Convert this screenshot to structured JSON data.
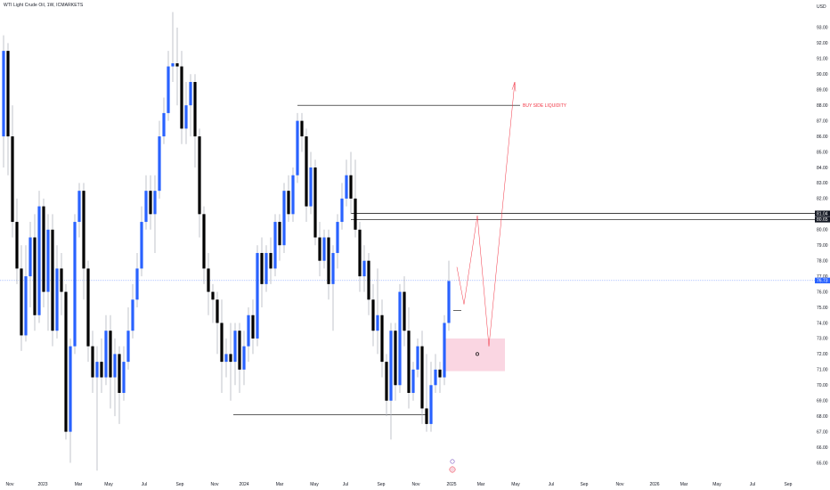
{
  "header": {
    "symbol_title": "WTI Light Crude Oil, 1W, ICMARKETS",
    "currency": "USD"
  },
  "colors": {
    "up_candle": "#2962ff",
    "down_candle": "#000000",
    "wick": "#b2b5be",
    "annotation_red": "#f23645",
    "zone_fill": "#f8c8d8",
    "price_line": "#2962ff",
    "level_label_bg": "#131722"
  },
  "chart_data": {
    "type": "candlestick",
    "instrument": "WTI Light Crude Oil",
    "timeframe": "1W",
    "y_axis": {
      "ticks": [
        "65.00",
        "66.00",
        "67.00",
        "68.00",
        "69.00",
        "70.00",
        "71.00",
        "72.00",
        "73.00",
        "74.00",
        "75.00",
        "76.00",
        "77.00",
        "78.00",
        "79.00",
        "80.00",
        "81.00",
        "82.00",
        "83.00",
        "84.00",
        "85.00",
        "86.00",
        "87.00",
        "88.00",
        "89.00",
        "90.00",
        "91.00",
        "92.00",
        "93.00"
      ],
      "ylim": [
        64.4,
        94.2
      ]
    },
    "x_axis": {
      "ticks": [
        "Nov",
        "2023",
        "Mar",
        "May",
        "Jul",
        "Sep",
        "Nov",
        "2024",
        "Mar",
        "May",
        "Jul",
        "Sep",
        "Nov",
        "2025",
        "Mar",
        "May",
        "Jul",
        "Sep",
        "Nov",
        "2026",
        "Mar",
        "May",
        "Jul",
        "Sep"
      ]
    },
    "current_price_label": "76.73",
    "level_labels": [
      "81.04",
      "80.65"
    ],
    "annotations": {
      "buy_side_label": "BUY SIDE LIQUIDITY"
    },
    "candles": [
      {
        "o": 86.0,
        "c": 91.5,
        "h": 92.5,
        "l": 84.0
      },
      {
        "o": 91.5,
        "c": 86.0,
        "h": 92.0,
        "l": 83.5
      },
      {
        "o": 86.0,
        "c": 80.5,
        "h": 88.0,
        "l": 79.5
      },
      {
        "o": 80.5,
        "c": 77.5,
        "h": 82.0,
        "l": 76.5
      },
      {
        "o": 77.5,
        "c": 73.2,
        "h": 79.0,
        "l": 72.2
      },
      {
        "o": 73.2,
        "c": 77.0,
        "h": 79.0,
        "l": 72.8
      },
      {
        "o": 77.0,
        "c": 79.5,
        "h": 80.5,
        "l": 75.0
      },
      {
        "o": 79.5,
        "c": 74.5,
        "h": 81.0,
        "l": 73.5
      },
      {
        "o": 74.5,
        "c": 81.5,
        "h": 82.5,
        "l": 74.0
      },
      {
        "o": 81.5,
        "c": 76.0,
        "h": 82.0,
        "l": 75.0
      },
      {
        "o": 76.0,
        "c": 80.0,
        "h": 81.0,
        "l": 73.5
      },
      {
        "o": 80.0,
        "c": 73.5,
        "h": 81.0,
        "l": 72.5
      },
      {
        "o": 73.5,
        "c": 77.5,
        "h": 79.0,
        "l": 73.0
      },
      {
        "o": 77.5,
        "c": 76.0,
        "h": 78.5,
        "l": 74.5
      },
      {
        "o": 76.0,
        "c": 67.0,
        "h": 76.5,
        "l": 66.5
      },
      {
        "o": 67.0,
        "c": 72.5,
        "h": 73.0,
        "l": 65.0
      },
      {
        "o": 72.5,
        "c": 80.5,
        "h": 81.0,
        "l": 72.0
      },
      {
        "o": 80.5,
        "c": 82.5,
        "h": 83.0,
        "l": 79.5
      },
      {
        "o": 82.5,
        "c": 77.5,
        "h": 83.0,
        "l": 75.5
      },
      {
        "o": 77.5,
        "c": 72.5,
        "h": 78.0,
        "l": 71.5
      },
      {
        "o": 72.5,
        "c": 70.5,
        "h": 73.5,
        "l": 69.5
      },
      {
        "o": 70.5,
        "c": 71.5,
        "h": 72.5,
        "l": 64.5
      },
      {
        "o": 71.5,
        "c": 70.5,
        "h": 73.0,
        "l": 69.5
      },
      {
        "o": 70.5,
        "c": 73.5,
        "h": 74.5,
        "l": 70.0
      },
      {
        "o": 73.5,
        "c": 70.5,
        "h": 74.5,
        "l": 68.5
      },
      {
        "o": 70.5,
        "c": 72.0,
        "h": 73.0,
        "l": 68.0
      },
      {
        "o": 72.0,
        "c": 69.5,
        "h": 72.5,
        "l": 67.5
      },
      {
        "o": 69.5,
        "c": 71.5,
        "h": 72.5,
        "l": 69.0
      },
      {
        "o": 71.5,
        "c": 73.5,
        "h": 75.0,
        "l": 71.0
      },
      {
        "o": 73.5,
        "c": 75.5,
        "h": 76.5,
        "l": 73.0
      },
      {
        "o": 75.5,
        "c": 77.5,
        "h": 78.5,
        "l": 75.0
      },
      {
        "o": 77.5,
        "c": 80.5,
        "h": 81.5,
        "l": 77.0
      },
      {
        "o": 80.5,
        "c": 82.5,
        "h": 83.5,
        "l": 80.0
      },
      {
        "o": 82.5,
        "c": 81.0,
        "h": 83.5,
        "l": 80.0
      },
      {
        "o": 81.0,
        "c": 82.5,
        "h": 83.5,
        "l": 78.5
      },
      {
        "o": 82.5,
        "c": 86.0,
        "h": 87.0,
        "l": 82.0
      },
      {
        "o": 86.0,
        "c": 87.5,
        "h": 88.5,
        "l": 85.5
      },
      {
        "o": 87.5,
        "c": 90.5,
        "h": 91.5,
        "l": 87.0
      },
      {
        "o": 90.5,
        "c": 90.7,
        "h": 94.0,
        "l": 89.5
      },
      {
        "o": 90.7,
        "c": 90.5,
        "h": 93.0,
        "l": 88.0
      },
      {
        "o": 90.5,
        "c": 86.5,
        "h": 91.5,
        "l": 85.5
      },
      {
        "o": 86.5,
        "c": 88.0,
        "h": 89.5,
        "l": 85.5
      },
      {
        "o": 88.0,
        "c": 89.5,
        "h": 90.0,
        "l": 86.0
      },
      {
        "o": 89.5,
        "c": 86.0,
        "h": 90.0,
        "l": 84.0
      },
      {
        "o": 86.0,
        "c": 81.0,
        "h": 86.5,
        "l": 79.5
      },
      {
        "o": 81.0,
        "c": 77.5,
        "h": 81.5,
        "l": 76.5
      },
      {
        "o": 77.5,
        "c": 76.0,
        "h": 78.5,
        "l": 74.5
      },
      {
        "o": 76.0,
        "c": 75.5,
        "h": 76.5,
        "l": 74.0
      },
      {
        "o": 75.5,
        "c": 74.0,
        "h": 76.0,
        "l": 72.0
      },
      {
        "o": 74.0,
        "c": 71.5,
        "h": 75.5,
        "l": 69.5
      },
      {
        "o": 71.5,
        "c": 72.0,
        "h": 73.0,
        "l": 70.5
      },
      {
        "o": 72.0,
        "c": 71.5,
        "h": 74.0,
        "l": 69.0
      },
      {
        "o": 71.5,
        "c": 73.5,
        "h": 74.0,
        "l": 70.0
      },
      {
        "o": 73.5,
        "c": 71.0,
        "h": 74.0,
        "l": 69.5
      },
      {
        "o": 71.0,
        "c": 72.5,
        "h": 73.5,
        "l": 70.0
      },
      {
        "o": 72.5,
        "c": 74.5,
        "h": 75.0,
        "l": 71.5
      },
      {
        "o": 74.5,
        "c": 73.0,
        "h": 75.5,
        "l": 72.0
      },
      {
        "o": 73.0,
        "c": 78.5,
        "h": 79.0,
        "l": 72.5
      },
      {
        "o": 78.5,
        "c": 76.5,
        "h": 79.5,
        "l": 75.0
      },
      {
        "o": 76.5,
        "c": 78.5,
        "h": 79.0,
        "l": 76.0
      },
      {
        "o": 78.5,
        "c": 77.5,
        "h": 79.5,
        "l": 76.5
      },
      {
        "o": 77.5,
        "c": 80.5,
        "h": 81.0,
        "l": 77.0
      },
      {
        "o": 80.5,
        "c": 79.0,
        "h": 81.0,
        "l": 78.0
      },
      {
        "o": 79.0,
        "c": 82.5,
        "h": 83.0,
        "l": 78.5
      },
      {
        "o": 82.5,
        "c": 81.0,
        "h": 83.5,
        "l": 80.5
      },
      {
        "o": 81.0,
        "c": 83.5,
        "h": 84.0,
        "l": 80.5
      },
      {
        "o": 83.5,
        "c": 87.0,
        "h": 87.5,
        "l": 83.0
      },
      {
        "o": 87.0,
        "c": 86.0,
        "h": 87.5,
        "l": 85.0
      },
      {
        "o": 86.0,
        "c": 81.5,
        "h": 86.5,
        "l": 80.5
      },
      {
        "o": 81.5,
        "c": 84.0,
        "h": 85.0,
        "l": 81.0
      },
      {
        "o": 84.0,
        "c": 79.5,
        "h": 84.5,
        "l": 79.0
      },
      {
        "o": 79.5,
        "c": 78.0,
        "h": 80.5,
        "l": 77.0
      },
      {
        "o": 78.0,
        "c": 79.5,
        "h": 80.0,
        "l": 77.5
      },
      {
        "o": 79.5,
        "c": 76.5,
        "h": 80.0,
        "l": 75.5
      },
      {
        "o": 76.5,
        "c": 78.5,
        "h": 79.0,
        "l": 73.5
      },
      {
        "o": 78.5,
        "c": 80.5,
        "h": 81.0,
        "l": 77.5
      },
      {
        "o": 80.5,
        "c": 82.0,
        "h": 83.0,
        "l": 80.0
      },
      {
        "o": 82.0,
        "c": 83.5,
        "h": 84.5,
        "l": 81.5
      },
      {
        "o": 83.5,
        "c": 82.0,
        "h": 85.0,
        "l": 81.0
      },
      {
        "o": 82.0,
        "c": 80.0,
        "h": 84.5,
        "l": 79.5
      },
      {
        "o": 80.0,
        "c": 77.0,
        "h": 80.5,
        "l": 76.0
      },
      {
        "o": 77.0,
        "c": 78.0,
        "h": 79.0,
        "l": 76.0
      },
      {
        "o": 78.0,
        "c": 75.5,
        "h": 78.5,
        "l": 74.5
      },
      {
        "o": 75.5,
        "c": 73.5,
        "h": 76.5,
        "l": 72.5
      },
      {
        "o": 73.5,
        "c": 74.5,
        "h": 77.5,
        "l": 72.0
      },
      {
        "o": 74.5,
        "c": 71.5,
        "h": 75.5,
        "l": 70.5
      },
      {
        "o": 71.5,
        "c": 69.0,
        "h": 72.0,
        "l": 68.0
      },
      {
        "o": 69.0,
        "c": 73.5,
        "h": 74.0,
        "l": 66.5
      },
      {
        "o": 73.5,
        "c": 70.0,
        "h": 74.0,
        "l": 69.0
      },
      {
        "o": 70.0,
        "c": 76.0,
        "h": 76.5,
        "l": 69.5
      },
      {
        "o": 76.0,
        "c": 73.5,
        "h": 77.0,
        "l": 72.5
      },
      {
        "o": 73.5,
        "c": 69.5,
        "h": 75.0,
        "l": 68.5
      },
      {
        "o": 69.5,
        "c": 71.0,
        "h": 71.5,
        "l": 69.0
      },
      {
        "o": 71.0,
        "c": 72.5,
        "h": 73.0,
        "l": 70.5
      },
      {
        "o": 72.5,
        "c": 68.5,
        "h": 73.5,
        "l": 67.5
      },
      {
        "o": 68.5,
        "c": 67.5,
        "h": 72.0,
        "l": 67.0
      },
      {
        "o": 67.5,
        "c": 70.0,
        "h": 71.5,
        "l": 67.0
      },
      {
        "o": 70.0,
        "c": 71.0,
        "h": 72.0,
        "l": 69.5
      },
      {
        "o": 71.0,
        "c": 70.5,
        "h": 71.5,
        "l": 69.5
      },
      {
        "o": 70.5,
        "c": 74.0,
        "h": 74.5,
        "l": 70.0
      },
      {
        "o": 74.0,
        "c": 76.7,
        "h": 78.0,
        "l": 73.5
      }
    ]
  }
}
